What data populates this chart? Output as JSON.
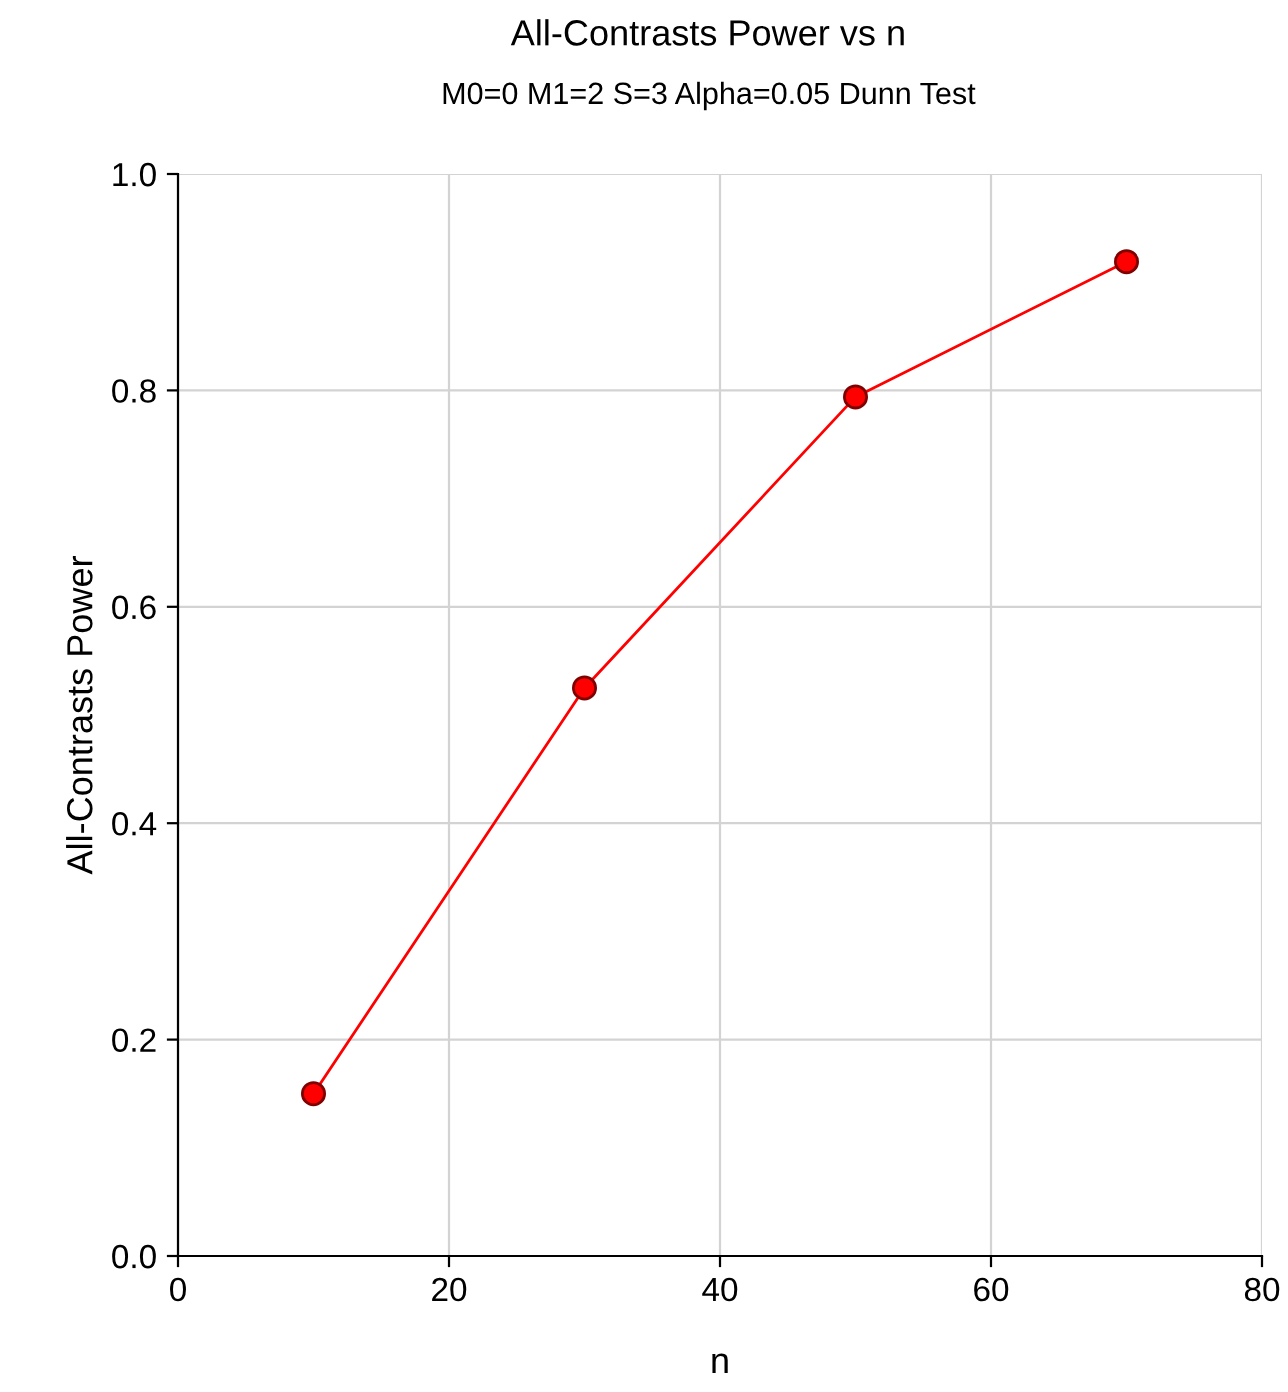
{
  "chart_data": {
    "type": "line",
    "title": "All-Contrasts Power vs n",
    "subtitle": "M0=0 M1=2 S=3 Alpha=0.05 Dunn Test",
    "xlabel": "n",
    "ylabel": "All-Contrasts Power",
    "x": [
      10,
      30,
      50,
      70
    ],
    "series": [
      {
        "color": "#ff0000",
        "values": [
          0.15,
          0.525,
          0.794,
          0.919
        ]
      }
    ],
    "xlim": [
      0,
      80
    ],
    "xticks": [
      0,
      20,
      40,
      60,
      80
    ],
    "ylim": [
      0,
      1
    ],
    "yticks": [
      {
        "value": 0,
        "label": "0.0"
      },
      {
        "value": 0.2,
        "label": "0.2"
      },
      {
        "value": 0.4,
        "label": "0.4"
      },
      {
        "value": 0.6,
        "label": "0.6"
      },
      {
        "value": 0.8,
        "label": "0.8"
      },
      {
        "value": 1,
        "label": "1.0"
      }
    ],
    "grid": true,
    "marker": "circle",
    "line_style": "solid"
  }
}
